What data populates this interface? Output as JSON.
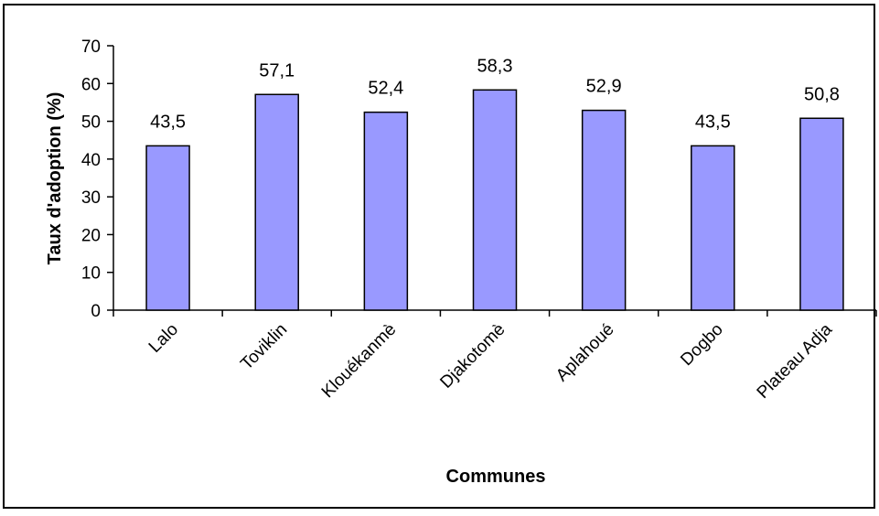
{
  "chart_data": {
    "type": "bar",
    "title": "",
    "xlabel": "Communes",
    "ylabel": "Taux d'adoption (%)",
    "categories": [
      "Lalo",
      "Toviklin",
      "Klouékanmè",
      "Djakotomè",
      "Aplahoué",
      "Dogbo",
      "Plateau Adja"
    ],
    "values": [
      43.5,
      57.1,
      52.4,
      58.3,
      52.9,
      43.5,
      50.8
    ],
    "data_labels": [
      "43,5",
      "57,1",
      "52,4",
      "58,3",
      "52,9",
      "43,5",
      "50,8"
    ],
    "ylim": [
      0,
      70
    ],
    "yticks": [
      0,
      10,
      20,
      30,
      40,
      50,
      60,
      70
    ],
    "grid": false,
    "legend": "none",
    "bar_color": "#9999ff",
    "bar_stroke": "#000000"
  }
}
